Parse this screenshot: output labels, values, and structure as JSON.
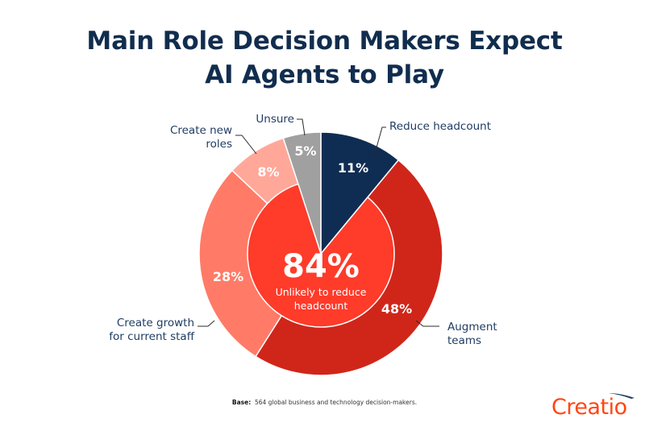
{
  "title": {
    "line1": "Main Role Decision Makers Expect",
    "line2": "AI Agents to Play"
  },
  "center": {
    "value": "84%",
    "label_line1": "Unlikely to reduce",
    "label_line2": "headcount",
    "color": "#FF3B2A"
  },
  "footnote": {
    "base_label": "Base:",
    "base_text": "564 global business and technology decision-makers."
  },
  "logo": {
    "text": "Creatio",
    "color": "#FF4713",
    "swoosh_color": "#1F3C64"
  },
  "chart_data": {
    "type": "pie",
    "title": "Main Role Decision Makers Expect AI Agents to Play",
    "start_angle": "12 o'clock, clockwise",
    "slices": [
      {
        "label": "Reduce headcount",
        "value": 11,
        "display": "11%",
        "color": "#0F2D52"
      },
      {
        "label": "Augment teams",
        "value": 48,
        "display": "48%",
        "color": "#D0261A"
      },
      {
        "label": "Create growth for current staff",
        "value": 28,
        "display": "28%",
        "color": "#FF7B67"
      },
      {
        "label": "Create new roles",
        "value": 8,
        "display": "8%",
        "color": "#FFA89A"
      },
      {
        "label": "Unsure",
        "value": 5,
        "display": "5%",
        "color": "#A0A0A0"
      }
    ],
    "annotations": [
      {
        "text": "84% Unlikely to reduce headcount",
        "groups": [
          "Augment teams",
          "Create growth for current staff",
          "Create new roles"
        ],
        "sum": 84
      }
    ],
    "legend": "none (callout labels)",
    "base": "564 global business and technology decision-makers."
  },
  "callouts": [
    {
      "lines": [
        "Reduce headcount"
      ],
      "anchor": "start"
    },
    {
      "lines": [
        "Augment",
        "teams"
      ],
      "anchor": "start"
    },
    {
      "lines": [
        "Create growth",
        "for current staff"
      ],
      "anchor": "end"
    },
    {
      "lines": [
        "Create new",
        "roles"
      ],
      "anchor": "end"
    },
    {
      "lines": [
        "Unsure"
      ],
      "anchor": "end"
    }
  ]
}
